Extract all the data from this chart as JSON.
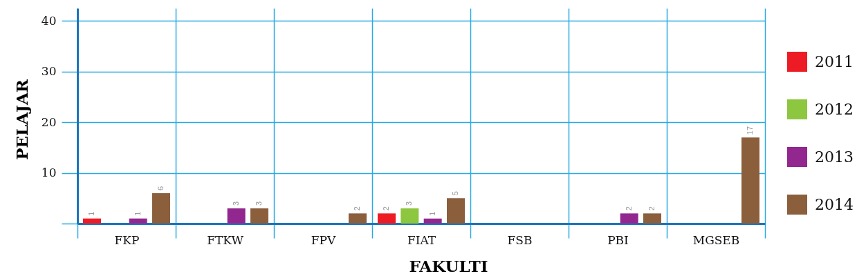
{
  "chart_data": {
    "type": "bar",
    "xlabel": "FAKULTI",
    "ylabel": "PELAJAR",
    "categories": [
      "FKP",
      "FTKW",
      "FPV",
      "FIAT",
      "FSB",
      "PBI",
      "MGSEB"
    ],
    "series": [
      {
        "name": "2011",
        "color": "#ed1c24",
        "values": [
          1,
          null,
          null,
          2,
          null,
          null,
          null
        ]
      },
      {
        "name": "2012",
        "color": "#8dc63f",
        "values": [
          null,
          null,
          null,
          3,
          null,
          null,
          null
        ]
      },
      {
        "name": "2013",
        "color": "#92278f",
        "values": [
          1,
          3,
          null,
          1,
          null,
          2,
          null
        ]
      },
      {
        "name": "2014",
        "color": "#8b5e3c",
        "values": [
          6,
          3,
          2,
          5,
          null,
          2,
          17
        ]
      }
    ],
    "ylim": [
      0,
      42.5
    ],
    "yticks": [
      {
        "value": 0,
        "label": null
      },
      10,
      20,
      30,
      40
    ],
    "grid": true,
    "legend": "right",
    "data_labels": true
  }
}
